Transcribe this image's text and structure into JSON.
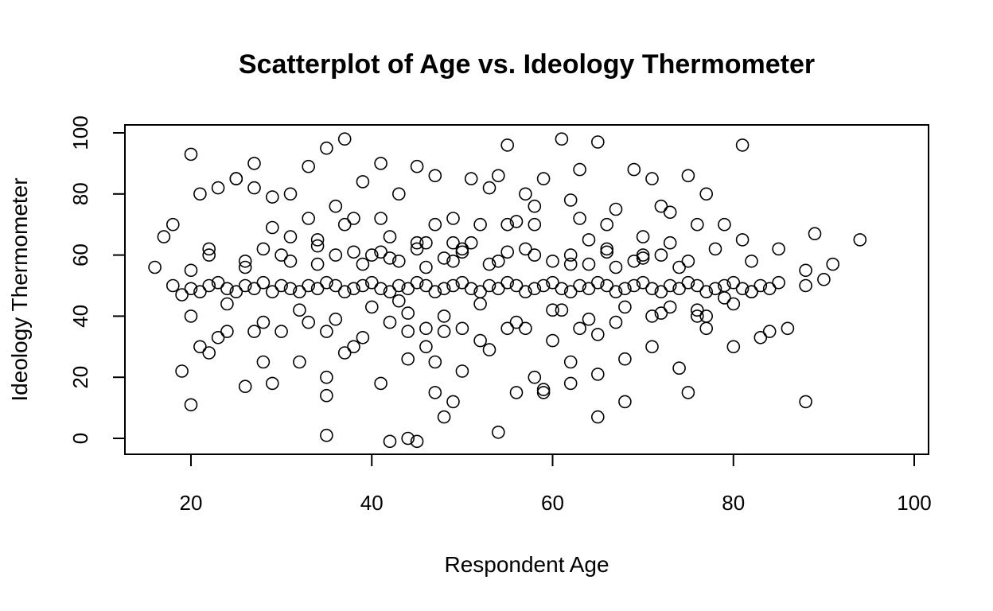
{
  "chart_data": {
    "type": "scatter",
    "title": "Scatterplot of Age vs. Ideology Thermometer",
    "xlabel": "Respondent Age",
    "ylabel": "Ideology Thermometer",
    "xlim": [
      16,
      100
    ],
    "ylim": [
      -2,
      100
    ],
    "xticks": [
      20,
      40,
      60,
      80,
      100
    ],
    "yticks": [
      0,
      20,
      40,
      60,
      80,
      100
    ],
    "point_style": "open-circle",
    "grid": false,
    "legend": "none",
    "series": [
      {
        "x": [
          16,
          17,
          18,
          19,
          20,
          21,
          22,
          23,
          24,
          25,
          26,
          27,
          28,
          29,
          30,
          31,
          32,
          33,
          34,
          35,
          36,
          37,
          38,
          39,
          40,
          41,
          42,
          43,
          44,
          45,
          46,
          47,
          48,
          49,
          50,
          51,
          52,
          53,
          54,
          55,
          56,
          57,
          58,
          59,
          60,
          61,
          62,
          63,
          64,
          65,
          66,
          67,
          68,
          69,
          70,
          71,
          72,
          73,
          74,
          75,
          76,
          77,
          78,
          79,
          80,
          81,
          82,
          83,
          84,
          85,
          86,
          88,
          89,
          90,
          91,
          94,
          20,
          22,
          24,
          26,
          28,
          30,
          32,
          34,
          36,
          38,
          40,
          42,
          44,
          46,
          48,
          50,
          52,
          54,
          56,
          58,
          60,
          62,
          64,
          66,
          68,
          70,
          72,
          74,
          76,
          78,
          80,
          82,
          18,
          21,
          23,
          25,
          27,
          29,
          31,
          33,
          35,
          37,
          39,
          41,
          43,
          45,
          47,
          49,
          51,
          53,
          55,
          57,
          59,
          61,
          63,
          65,
          67,
          69,
          71,
          73,
          75,
          77,
          79,
          81,
          19,
          22,
          26,
          29,
          32,
          35,
          38,
          41,
          44,
          47,
          50,
          53,
          56,
          59,
          62,
          65,
          68,
          71,
          74,
          77,
          80,
          83,
          20,
          24,
          27,
          31,
          34,
          37,
          40,
          43,
          46,
          49,
          52,
          55,
          58,
          61,
          64,
          67,
          70,
          73,
          76,
          79,
          82,
          85,
          88,
          20,
          25,
          27,
          29,
          33,
          36,
          38,
          41,
          42,
          45,
          47,
          49,
          51,
          54,
          56,
          58,
          62,
          63,
          66,
          70,
          72,
          76,
          81,
          21,
          23,
          28,
          30,
          33,
          35,
          37,
          39,
          42,
          44,
          46,
          48,
          50,
          52,
          55,
          57,
          60,
          63,
          65,
          67,
          71,
          73,
          77,
          22,
          26,
          28,
          31,
          34,
          36,
          39,
          41,
          43,
          45,
          48,
          50,
          53,
          55,
          57,
          60,
          62,
          64,
          66,
          69,
          72,
          75,
          35,
          42,
          44,
          45,
          48,
          54,
          20,
          49,
          65,
          88,
          47,
          35,
          59,
          75,
          58,
          62,
          46,
          68,
          84
        ],
        "y": [
          56,
          66,
          50,
          47,
          49,
          48,
          50,
          51,
          49,
          48,
          50,
          49,
          51,
          48,
          50,
          49,
          48,
          50,
          49,
          51,
          50,
          48,
          49,
          50,
          51,
          49,
          48,
          50,
          49,
          51,
          50,
          48,
          49,
          50,
          51,
          49,
          48,
          50,
          49,
          51,
          50,
          48,
          49,
          50,
          51,
          49,
          48,
          50,
          49,
          51,
          50,
          48,
          49,
          50,
          51,
          49,
          48,
          50,
          49,
          51,
          50,
          48,
          49,
          50,
          51,
          49,
          48,
          50,
          49,
          51,
          36,
          50,
          67,
          52,
          57,
          65,
          40,
          62,
          44,
          58,
          38,
          60,
          42,
          57,
          39,
          61,
          43,
          59,
          41,
          56,
          40,
          62,
          44,
          58,
          38,
          60,
          42,
          57,
          39,
          61,
          43,
          59,
          41,
          56,
          40,
          62,
          44,
          58,
          70,
          80,
          82,
          85,
          90,
          79,
          80,
          89,
          95,
          98,
          84,
          90,
          80,
          89,
          86,
          72,
          85,
          82,
          96,
          80,
          85,
          98,
          88,
          97,
          75,
          88,
          85,
          74,
          86,
          80,
          70,
          96,
          22,
          28,
          17,
          18,
          25,
          14,
          30,
          18,
          26,
          25,
          22,
          29,
          15,
          16,
          18,
          21,
          26,
          30,
          23,
          40,
          30,
          33,
          55,
          35,
          35,
          66,
          65,
          70,
          60,
          45,
          64,
          58,
          70,
          70,
          76,
          42,
          65,
          56,
          60,
          64,
          42,
          46,
          48,
          62,
          55,
          93,
          85,
          82,
          69,
          72,
          76,
          72,
          72,
          66,
          64,
          70,
          64,
          64,
          86,
          71,
          70,
          78,
          72,
          70,
          66,
          76,
          70,
          65,
          30,
          33,
          25,
          35,
          38,
          35,
          28,
          33,
          38,
          35,
          36,
          35,
          36,
          32,
          36,
          36,
          32,
          36,
          34,
          38,
          40,
          43,
          36,
          60,
          56,
          62,
          58,
          63,
          60,
          57,
          61,
          58,
          62,
          59,
          61,
          57,
          61,
          62,
          58,
          60,
          57,
          62,
          58,
          60,
          58,
          1,
          -1,
          0,
          -1,
          7,
          2,
          11,
          12,
          7,
          12,
          15,
          20,
          15,
          15,
          20,
          25,
          30,
          12,
          35
        ]
      }
    ]
  }
}
